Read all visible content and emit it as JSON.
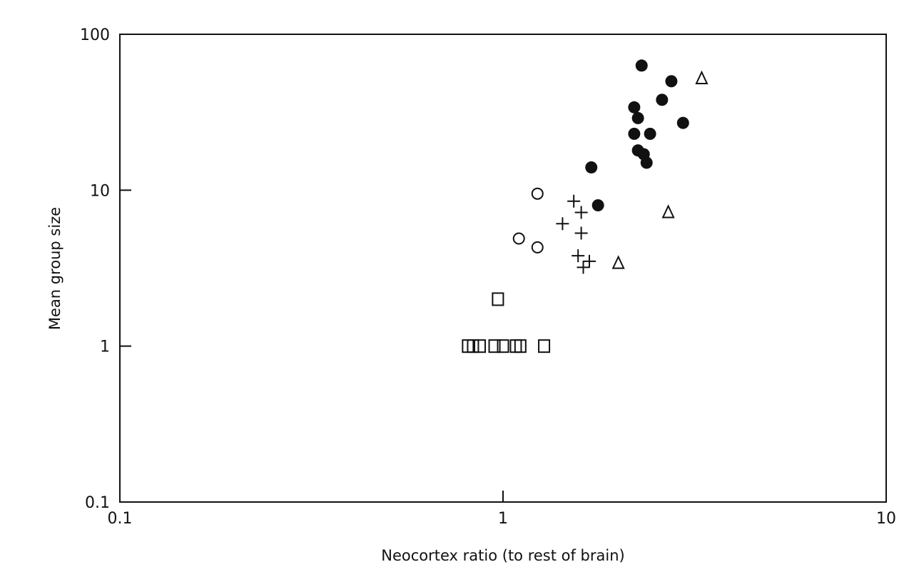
{
  "chart_data": {
    "type": "scatter",
    "title": "",
    "xlabel": "Neocortex ratio (to rest of brain)",
    "ylabel": "Mean group size",
    "x_scale": "log",
    "y_scale": "log",
    "xlim": [
      0.1,
      10
    ],
    "ylim": [
      0.1,
      100
    ],
    "x_ticks": [
      {
        "value": 0.1,
        "label": "0.1"
      },
      {
        "value": 1,
        "label": "1"
      },
      {
        "value": 10,
        "label": "10"
      }
    ],
    "y_ticks": [
      {
        "value": 100,
        "label": "100"
      },
      {
        "value": 10,
        "label": "10"
      },
      {
        "value": 1,
        "label": "1"
      },
      {
        "value": 0.1,
        "label": "0.1"
      }
    ],
    "grid": false,
    "legend": "none",
    "series": [
      {
        "marker": "filled-circle",
        "points": [
          {
            "x": 2.3,
            "y": 63
          },
          {
            "x": 2.75,
            "y": 50
          },
          {
            "x": 2.6,
            "y": 38
          },
          {
            "x": 2.2,
            "y": 34
          },
          {
            "x": 2.25,
            "y": 29
          },
          {
            "x": 2.95,
            "y": 27
          },
          {
            "x": 2.2,
            "y": 23
          },
          {
            "x": 2.42,
            "y": 23
          },
          {
            "x": 2.25,
            "y": 18
          },
          {
            "x": 2.33,
            "y": 17
          },
          {
            "x": 2.37,
            "y": 15
          },
          {
            "x": 1.7,
            "y": 14
          },
          {
            "x": 1.77,
            "y": 8
          }
        ]
      },
      {
        "marker": "open-triangle",
        "points": [
          {
            "x": 3.3,
            "y": 52
          },
          {
            "x": 2.7,
            "y": 7.2
          },
          {
            "x": 2.0,
            "y": 3.4
          }
        ]
      },
      {
        "marker": "open-circle",
        "points": [
          {
            "x": 1.23,
            "y": 9.5
          },
          {
            "x": 1.1,
            "y": 4.9
          },
          {
            "x": 1.23,
            "y": 4.3
          }
        ]
      },
      {
        "marker": "plus",
        "points": [
          {
            "x": 1.53,
            "y": 8.5
          },
          {
            "x": 1.6,
            "y": 7.2
          },
          {
            "x": 1.43,
            "y": 6.1
          },
          {
            "x": 1.6,
            "y": 5.3
          },
          {
            "x": 1.57,
            "y": 3.8
          },
          {
            "x": 1.68,
            "y": 3.5
          },
          {
            "x": 1.62,
            "y": 3.2
          }
        ]
      },
      {
        "marker": "open-square",
        "points": [
          {
            "x": 0.97,
            "y": 2.0
          },
          {
            "x": 0.81,
            "y": 1.0
          },
          {
            "x": 0.835,
            "y": 1.0
          },
          {
            "x": 0.87,
            "y": 1.0
          },
          {
            "x": 0.95,
            "y": 1.0
          },
          {
            "x": 1.0,
            "y": 1.0
          },
          {
            "x": 1.08,
            "y": 1.0
          },
          {
            "x": 1.11,
            "y": 1.0
          },
          {
            "x": 1.28,
            "y": 1.0
          }
        ]
      }
    ]
  }
}
